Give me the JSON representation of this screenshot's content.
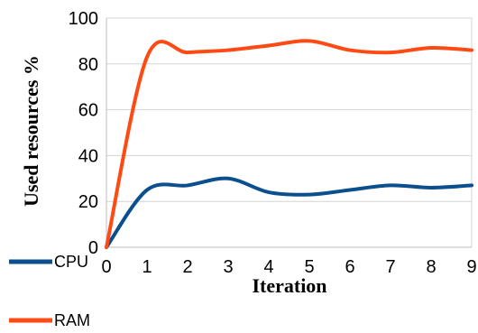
{
  "chart_data": {
    "type": "line",
    "title": "",
    "xlabel": "Iteration",
    "ylabel": "Used resources %",
    "xlim": [
      0,
      9
    ],
    "ylim": [
      0,
      100
    ],
    "x_ticks": [
      "0",
      "1",
      "2",
      "3",
      "4",
      "5",
      "6",
      "7",
      "8",
      "9"
    ],
    "y_ticks": [
      "0",
      "20",
      "40",
      "60",
      "80",
      "100"
    ],
    "grid": "horizontal",
    "legend_position": "bottom-left",
    "x": [
      0,
      1,
      2,
      3,
      4,
      5,
      6,
      7,
      8,
      9
    ],
    "series": [
      {
        "name": "CPU",
        "color": "#0b4f8f",
        "values": [
          0,
          25,
          27,
          30,
          24,
          23,
          25,
          27,
          26,
          27
        ]
      },
      {
        "name": "RAM",
        "color": "#ff4a14",
        "values": [
          0,
          83,
          85,
          86,
          88,
          90,
          86,
          85,
          87,
          86
        ]
      }
    ]
  }
}
